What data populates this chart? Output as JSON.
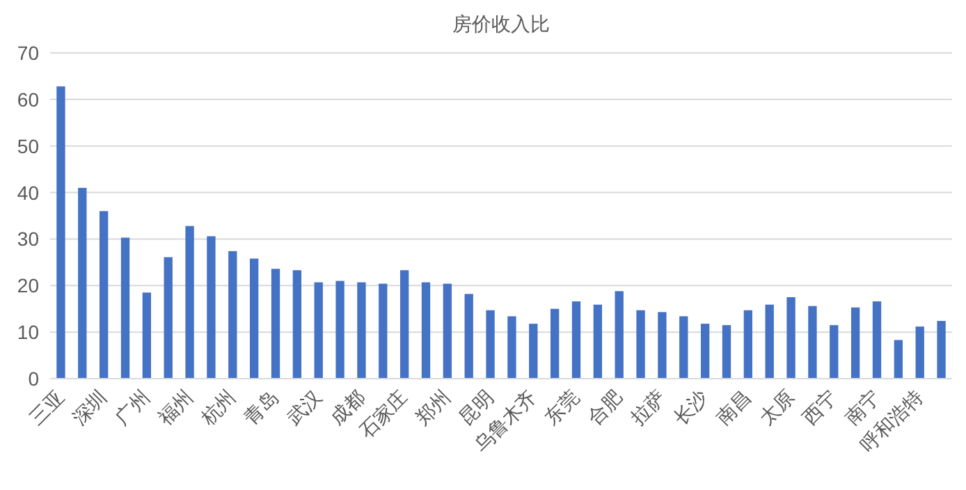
{
  "chart_data": {
    "type": "bar",
    "title": "房价收入比",
    "categories": [
      "三亚",
      null,
      "深圳",
      null,
      "广州",
      null,
      "福州",
      null,
      "杭州",
      null,
      "青岛",
      null,
      "武汉",
      null,
      "成都",
      null,
      "石家庄",
      null,
      "郑州",
      null,
      "昆明",
      null,
      "乌鲁木齐",
      null,
      "东莞",
      null,
      "合肥",
      null,
      "拉萨",
      null,
      "长沙",
      null,
      "南昌",
      null,
      "太原",
      null,
      "西宁",
      null,
      "南宁",
      null,
      "呼和浩特",
      null
    ],
    "values": [
      62.8,
      41.0,
      36.0,
      30.3,
      18.5,
      26.1,
      32.8,
      30.6,
      27.4,
      25.8,
      23.6,
      23.3,
      20.7,
      21.0,
      20.7,
      20.4,
      23.3,
      20.7,
      20.4,
      18.2,
      14.7,
      13.4,
      11.8,
      15.0,
      16.6,
      15.9,
      18.8,
      14.7,
      14.3,
      13.4,
      11.8,
      11.5,
      14.7,
      15.9,
      17.5,
      15.6,
      11.5,
      15.3,
      16.6,
      8.3,
      11.2,
      12.4
    ],
    "color": "#4472c4",
    "ylim": [
      0,
      70
    ],
    "yticks": [
      0,
      10,
      20,
      30,
      40,
      50,
      60,
      70
    ],
    "grid": "y"
  }
}
